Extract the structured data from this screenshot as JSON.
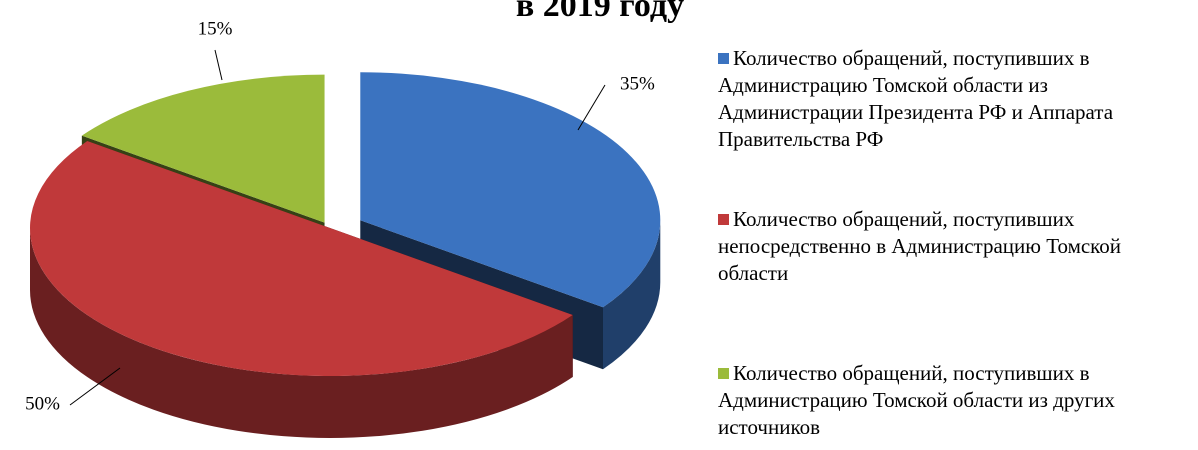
{
  "chart_data": {
    "type": "pie",
    "title": "в 2019 году",
    "categories": [
      "Количество обращений, поступивших в Администрацию Томской области из Администрации Президента РФ и Аппарата Правительства РФ",
      "Количество обращений, поступивших непосредственно в Администрацию Томской области",
      "Количество обращений, поступивших в Администрацию Томской области из других источников"
    ],
    "values": [
      35,
      50,
      15
    ],
    "value_labels": [
      "35%",
      "50%",
      "15%"
    ],
    "colors": [
      "#3b73c0",
      "#c0393a",
      "#9bbb3b"
    ],
    "legend": "right"
  }
}
